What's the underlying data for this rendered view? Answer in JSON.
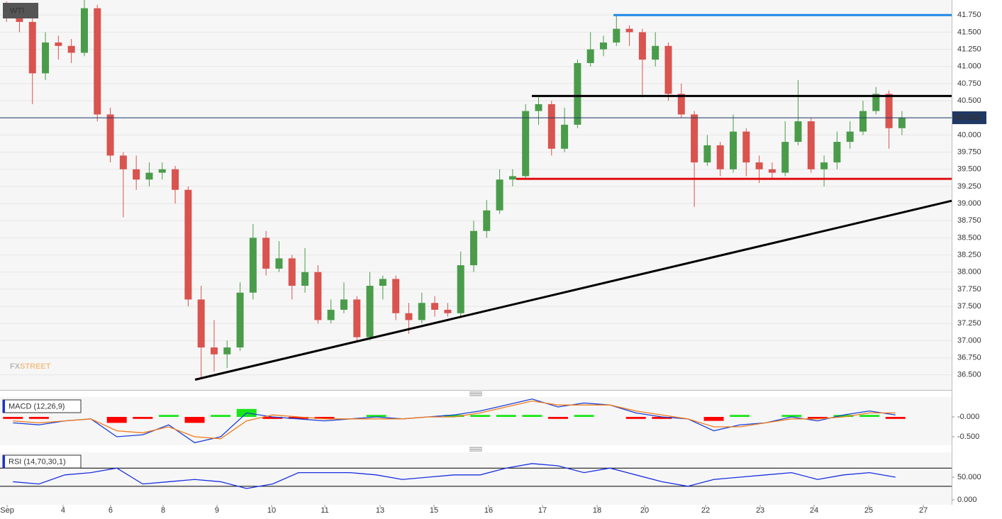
{
  "chart_data": [
    {
      "type": "candlestick",
      "title": "WTI",
      "watermark": {
        "prefix": "FX",
        "suffix": "STREET"
      },
      "xlim": [
        0,
        73.33
      ],
      "ylim": [
        36.28,
        41.97
      ],
      "grid": true,
      "up_color": "#4a9c4a",
      "down_color": "#d9534f",
      "yticks": [
        {
          "value": 36.5,
          "label": "36.500"
        },
        {
          "value": 36.75,
          "label": "36.750"
        },
        {
          "value": 37,
          "label": "37.000"
        },
        {
          "value": 37.25,
          "label": "37.250"
        },
        {
          "value": 37.5,
          "label": "37.500"
        },
        {
          "value": 37.75,
          "label": "37.750"
        },
        {
          "value": 38,
          "label": "38.000"
        },
        {
          "value": 38.25,
          "label": "38.250"
        },
        {
          "value": 38.5,
          "label": "38.500"
        },
        {
          "value": 38.75,
          "label": "38.750"
        },
        {
          "value": 39,
          "label": "39.000"
        },
        {
          "value": 39.25,
          "label": "39.250"
        },
        {
          "value": 39.5,
          "label": "39.500"
        },
        {
          "value": 39.75,
          "label": "39.750"
        },
        {
          "value": 40,
          "label": "40.000"
        },
        {
          "value": 40.25,
          "label": "40.250"
        },
        {
          "value": 40.5,
          "label": "40.500"
        },
        {
          "value": 40.75,
          "label": "40.750"
        },
        {
          "value": 41,
          "label": "41.000"
        },
        {
          "value": 41.25,
          "label": "41.250"
        },
        {
          "value": 41.5,
          "label": "41.500"
        },
        {
          "value": 41.75,
          "label": "41.750"
        }
      ],
      "x": [
        0.5,
        1.5,
        2.5,
        3.5,
        4.5,
        5.5,
        6.5,
        7.5,
        8.5,
        9.5,
        10.5,
        11.5,
        12.5,
        13.5,
        14.5,
        15.5,
        16.5,
        17.5,
        18.5,
        19.5,
        20.5,
        21.5,
        22.5,
        23.5,
        24.5,
        25.5,
        26.5,
        27.5,
        28.5,
        29.5,
        30.5,
        31.5,
        32.5,
        33.5,
        34.5,
        35.5,
        36.5,
        37.5,
        38.5,
        39.5,
        40.5,
        41.5,
        42.5,
        43.5,
        44.5,
        45.5,
        46.5,
        47.5,
        48.5,
        49.5,
        50.5,
        51.5,
        52.5,
        53.5,
        54.5,
        55.5,
        56.5,
        57.5,
        58.5,
        59.5,
        60.5,
        61.5,
        62.5,
        63.5,
        64.5,
        65.5,
        66.5,
        67.5,
        68.5,
        69.5
      ],
      "open": [
        41.85,
        41.75,
        41.65,
        40.9,
        41.35,
        41.3,
        41.2,
        41.85,
        40.3,
        39.7,
        39.5,
        39.35,
        39.45,
        39.5,
        39.2,
        37.6,
        36.9,
        36.8,
        36.9,
        37.7,
        38.5,
        38.05,
        38.2,
        37.8,
        38.0,
        37.3,
        37.45,
        37.6,
        37.05,
        37.8,
        37.9,
        37.4,
        37.3,
        37.55,
        37.45,
        37.4,
        38.1,
        38.6,
        38.9,
        39.35,
        39.4,
        40.35,
        40.45,
        39.8,
        40.15,
        41.05,
        41.25,
        41.35,
        41.55,
        41.5,
        41.1,
        41.3,
        40.6,
        40.3,
        39.6,
        39.85,
        39.5,
        40.05,
        39.6,
        39.5,
        39.45,
        39.9,
        40.2,
        39.5,
        39.6,
        39.9,
        40.05,
        40.35,
        40.6,
        40.1
      ],
      "high": [
        41.95,
        41.8,
        41.7,
        41.5,
        41.45,
        41.4,
        42.0,
        41.9,
        40.4,
        39.75,
        39.7,
        39.6,
        39.6,
        39.55,
        39.25,
        37.8,
        37.3,
        37.0,
        37.85,
        38.7,
        38.6,
        38.45,
        38.25,
        38.35,
        38.1,
        37.6,
        37.85,
        37.65,
        38.0,
        37.95,
        37.95,
        37.55,
        37.7,
        37.65,
        37.55,
        38.3,
        38.75,
        39.05,
        39.5,
        39.5,
        40.45,
        40.55,
        40.5,
        40.4,
        41.1,
        41.5,
        41.45,
        41.75,
        41.6,
        41.55,
        41.5,
        41.35,
        40.75,
        40.35,
        40.0,
        39.9,
        40.3,
        40.1,
        39.7,
        39.6,
        40.2,
        40.8,
        40.25,
        39.7,
        40.05,
        40.2,
        40.5,
        40.7,
        40.65,
        40.35
      ],
      "low": [
        41.65,
        41.5,
        40.45,
        40.8,
        41.1,
        41.05,
        41.15,
        40.2,
        39.6,
        38.8,
        39.2,
        39.25,
        39.35,
        39.0,
        37.5,
        36.45,
        36.55,
        36.6,
        36.85,
        37.6,
        37.95,
        38.0,
        37.6,
        37.7,
        37.25,
        37.25,
        37.4,
        37.0,
        37.0,
        37.6,
        37.3,
        37.1,
        37.25,
        37.35,
        37.35,
        37.35,
        38.0,
        38.5,
        38.85,
        39.25,
        39.35,
        40.15,
        39.7,
        39.75,
        40.1,
        41.0,
        41.15,
        41.3,
        41.3,
        40.55,
        41.0,
        40.5,
        40.25,
        38.95,
        39.55,
        39.4,
        39.45,
        39.4,
        39.3,
        39.35,
        39.4,
        39.85,
        39.45,
        39.25,
        39.5,
        39.8,
        40.0,
        40.3,
        39.8,
        40.0
      ],
      "close": [
        41.75,
        41.65,
        40.9,
        41.35,
        41.3,
        41.2,
        41.85,
        40.3,
        39.7,
        39.5,
        39.35,
        39.45,
        39.5,
        39.2,
        37.6,
        36.9,
        36.8,
        36.9,
        37.7,
        38.5,
        38.05,
        38.2,
        37.8,
        38.0,
        37.3,
        37.45,
        37.6,
        37.05,
        37.8,
        37.9,
        37.4,
        37.3,
        37.55,
        37.45,
        37.4,
        38.1,
        38.6,
        38.9,
        39.35,
        39.4,
        40.35,
        40.45,
        39.8,
        40.15,
        41.05,
        41.25,
        41.35,
        41.55,
        41.5,
        41.1,
        41.3,
        40.6,
        40.3,
        39.6,
        39.85,
        39.5,
        40.05,
        39.6,
        39.5,
        39.45,
        39.9,
        40.2,
        39.5,
        39.6,
        39.9,
        40.05,
        40.35,
        40.6,
        40.1,
        40.25
      ],
      "lines": [
        {
          "x": [
            47.27,
            73.33
          ],
          "y": [
            41.75,
            41.75
          ],
          "color": "#1e88e5"
        },
        {
          "x": [
            40.98,
            73.33
          ],
          "y": [
            40.57,
            40.57
          ],
          "color": "#000000"
        },
        {
          "x": [
            39.78,
            73.33
          ],
          "y": [
            39.36,
            39.36
          ],
          "color": "#e01010"
        },
        {
          "x": [
            15.03,
            73.33
          ],
          "y": [
            36.43,
            39.04
          ],
          "color": "#000000"
        }
      ],
      "last": {
        "value": 40.252,
        "color": "#1f3864"
      }
    },
    {
      "type": "macd",
      "title": "MACD (12,26,9)",
      "xlim": [
        0,
        73.33
      ],
      "ylim": [
        -0.714,
        0.5
      ],
      "yticks": [
        {
          "value": 0,
          "label": "-0.000"
        },
        {
          "value": -0.5,
          "label": "-0.500"
        }
      ],
      "x": [
        1,
        3,
        5,
        7,
        9,
        11,
        13,
        15,
        17,
        19,
        21,
        23,
        25,
        27,
        29,
        31,
        33,
        35,
        37,
        39,
        41,
        43,
        45,
        47,
        49,
        51,
        53,
        55,
        57,
        59,
        61,
        63,
        65,
        67,
        69
      ],
      "histogram": {
        "up_color": "#19e619",
        "down_color": "#ff0000",
        "values": [
          -0.05,
          -0.05,
          0.0,
          0.0,
          -0.15,
          -0.05,
          0.05,
          -0.15,
          0.05,
          0.2,
          -0.05,
          -0.05,
          -0.05,
          0.0,
          0.05,
          0.0,
          0.0,
          0.05,
          0.05,
          0.05,
          0.05,
          -0.05,
          0.05,
          0.0,
          -0.05,
          -0.05,
          0.0,
          -0.1,
          0.05,
          0.0,
          0.05,
          -0.05,
          0.05,
          0.05,
          -0.05
        ]
      },
      "series": [
        {
          "color": "#1a3fd6",
          "values": [
            -0.15,
            -0.2,
            -0.1,
            -0.05,
            -0.5,
            -0.45,
            -0.2,
            -0.65,
            -0.5,
            0.1,
            0.0,
            -0.05,
            -0.1,
            -0.05,
            0.0,
            -0.05,
            0.0,
            0.05,
            0.15,
            0.3,
            0.45,
            0.25,
            0.35,
            0.3,
            0.1,
            0.0,
            -0.05,
            -0.35,
            -0.2,
            -0.15,
            0.0,
            -0.1,
            0.05,
            0.15,
            0.05
          ]
        },
        {
          "color": "#f07a1a",
          "values": [
            -0.1,
            -0.15,
            -0.1,
            -0.05,
            -0.35,
            -0.4,
            -0.25,
            -0.5,
            -0.55,
            -0.1,
            0.05,
            0.0,
            -0.05,
            -0.05,
            -0.05,
            -0.05,
            0.0,
            0.0,
            0.1,
            0.25,
            0.4,
            0.3,
            0.3,
            0.3,
            0.15,
            0.05,
            -0.05,
            -0.25,
            -0.25,
            -0.15,
            -0.05,
            -0.05,
            0.0,
            0.1,
            0.1
          ]
        }
      ]
    },
    {
      "type": "line",
      "title": "RSI (14,70,30,1)",
      "xlim": [
        0,
        73.33
      ],
      "ylim": [
        -10.9,
        104.7
      ],
      "levels": [
        70,
        30
      ],
      "yticks": [
        {
          "value": 50,
          "label": "50.000"
        },
        {
          "value": 0,
          "label": "0.000"
        }
      ],
      "xticks": [
        {
          "value": 0.55,
          "label": "Sep"
        },
        {
          "value": 4.86,
          "label": "4"
        },
        {
          "value": 8.52,
          "label": "6"
        },
        {
          "value": 12.57,
          "label": "8"
        },
        {
          "value": 16.72,
          "label": "9"
        },
        {
          "value": 20.93,
          "label": "10"
        },
        {
          "value": 25.03,
          "label": "11"
        },
        {
          "value": 29.29,
          "label": "13"
        },
        {
          "value": 33.44,
          "label": "15"
        },
        {
          "value": 37.65,
          "label": "16"
        },
        {
          "value": 41.8,
          "label": "17"
        },
        {
          "value": 46.01,
          "label": "18"
        },
        {
          "value": 49.67,
          "label": "20"
        },
        {
          "value": 54.37,
          "label": "22"
        },
        {
          "value": 58.58,
          "label": "23"
        },
        {
          "value": 62.73,
          "label": "24"
        },
        {
          "value": 66.94,
          "label": "25"
        },
        {
          "value": 71.15,
          "label": "27"
        }
      ],
      "x": [
        1,
        3,
        5,
        7,
        9,
        11,
        13,
        15,
        17,
        19,
        21,
        23,
        25,
        27,
        29,
        31,
        33,
        35,
        37,
        39,
        41,
        43,
        45,
        47,
        49,
        51,
        53,
        55,
        57,
        59,
        61,
        63,
        65,
        67,
        69
      ],
      "series": [
        {
          "color": "#1a2fe0",
          "values": [
            40,
            35,
            55,
            60,
            70,
            35,
            40,
            45,
            40,
            25,
            35,
            60,
            60,
            60,
            55,
            45,
            50,
            55,
            55,
            70,
            80,
            75,
            60,
            70,
            55,
            40,
            30,
            45,
            50,
            55,
            60,
            45,
            55,
            60,
            50
          ]
        }
      ]
    }
  ]
}
